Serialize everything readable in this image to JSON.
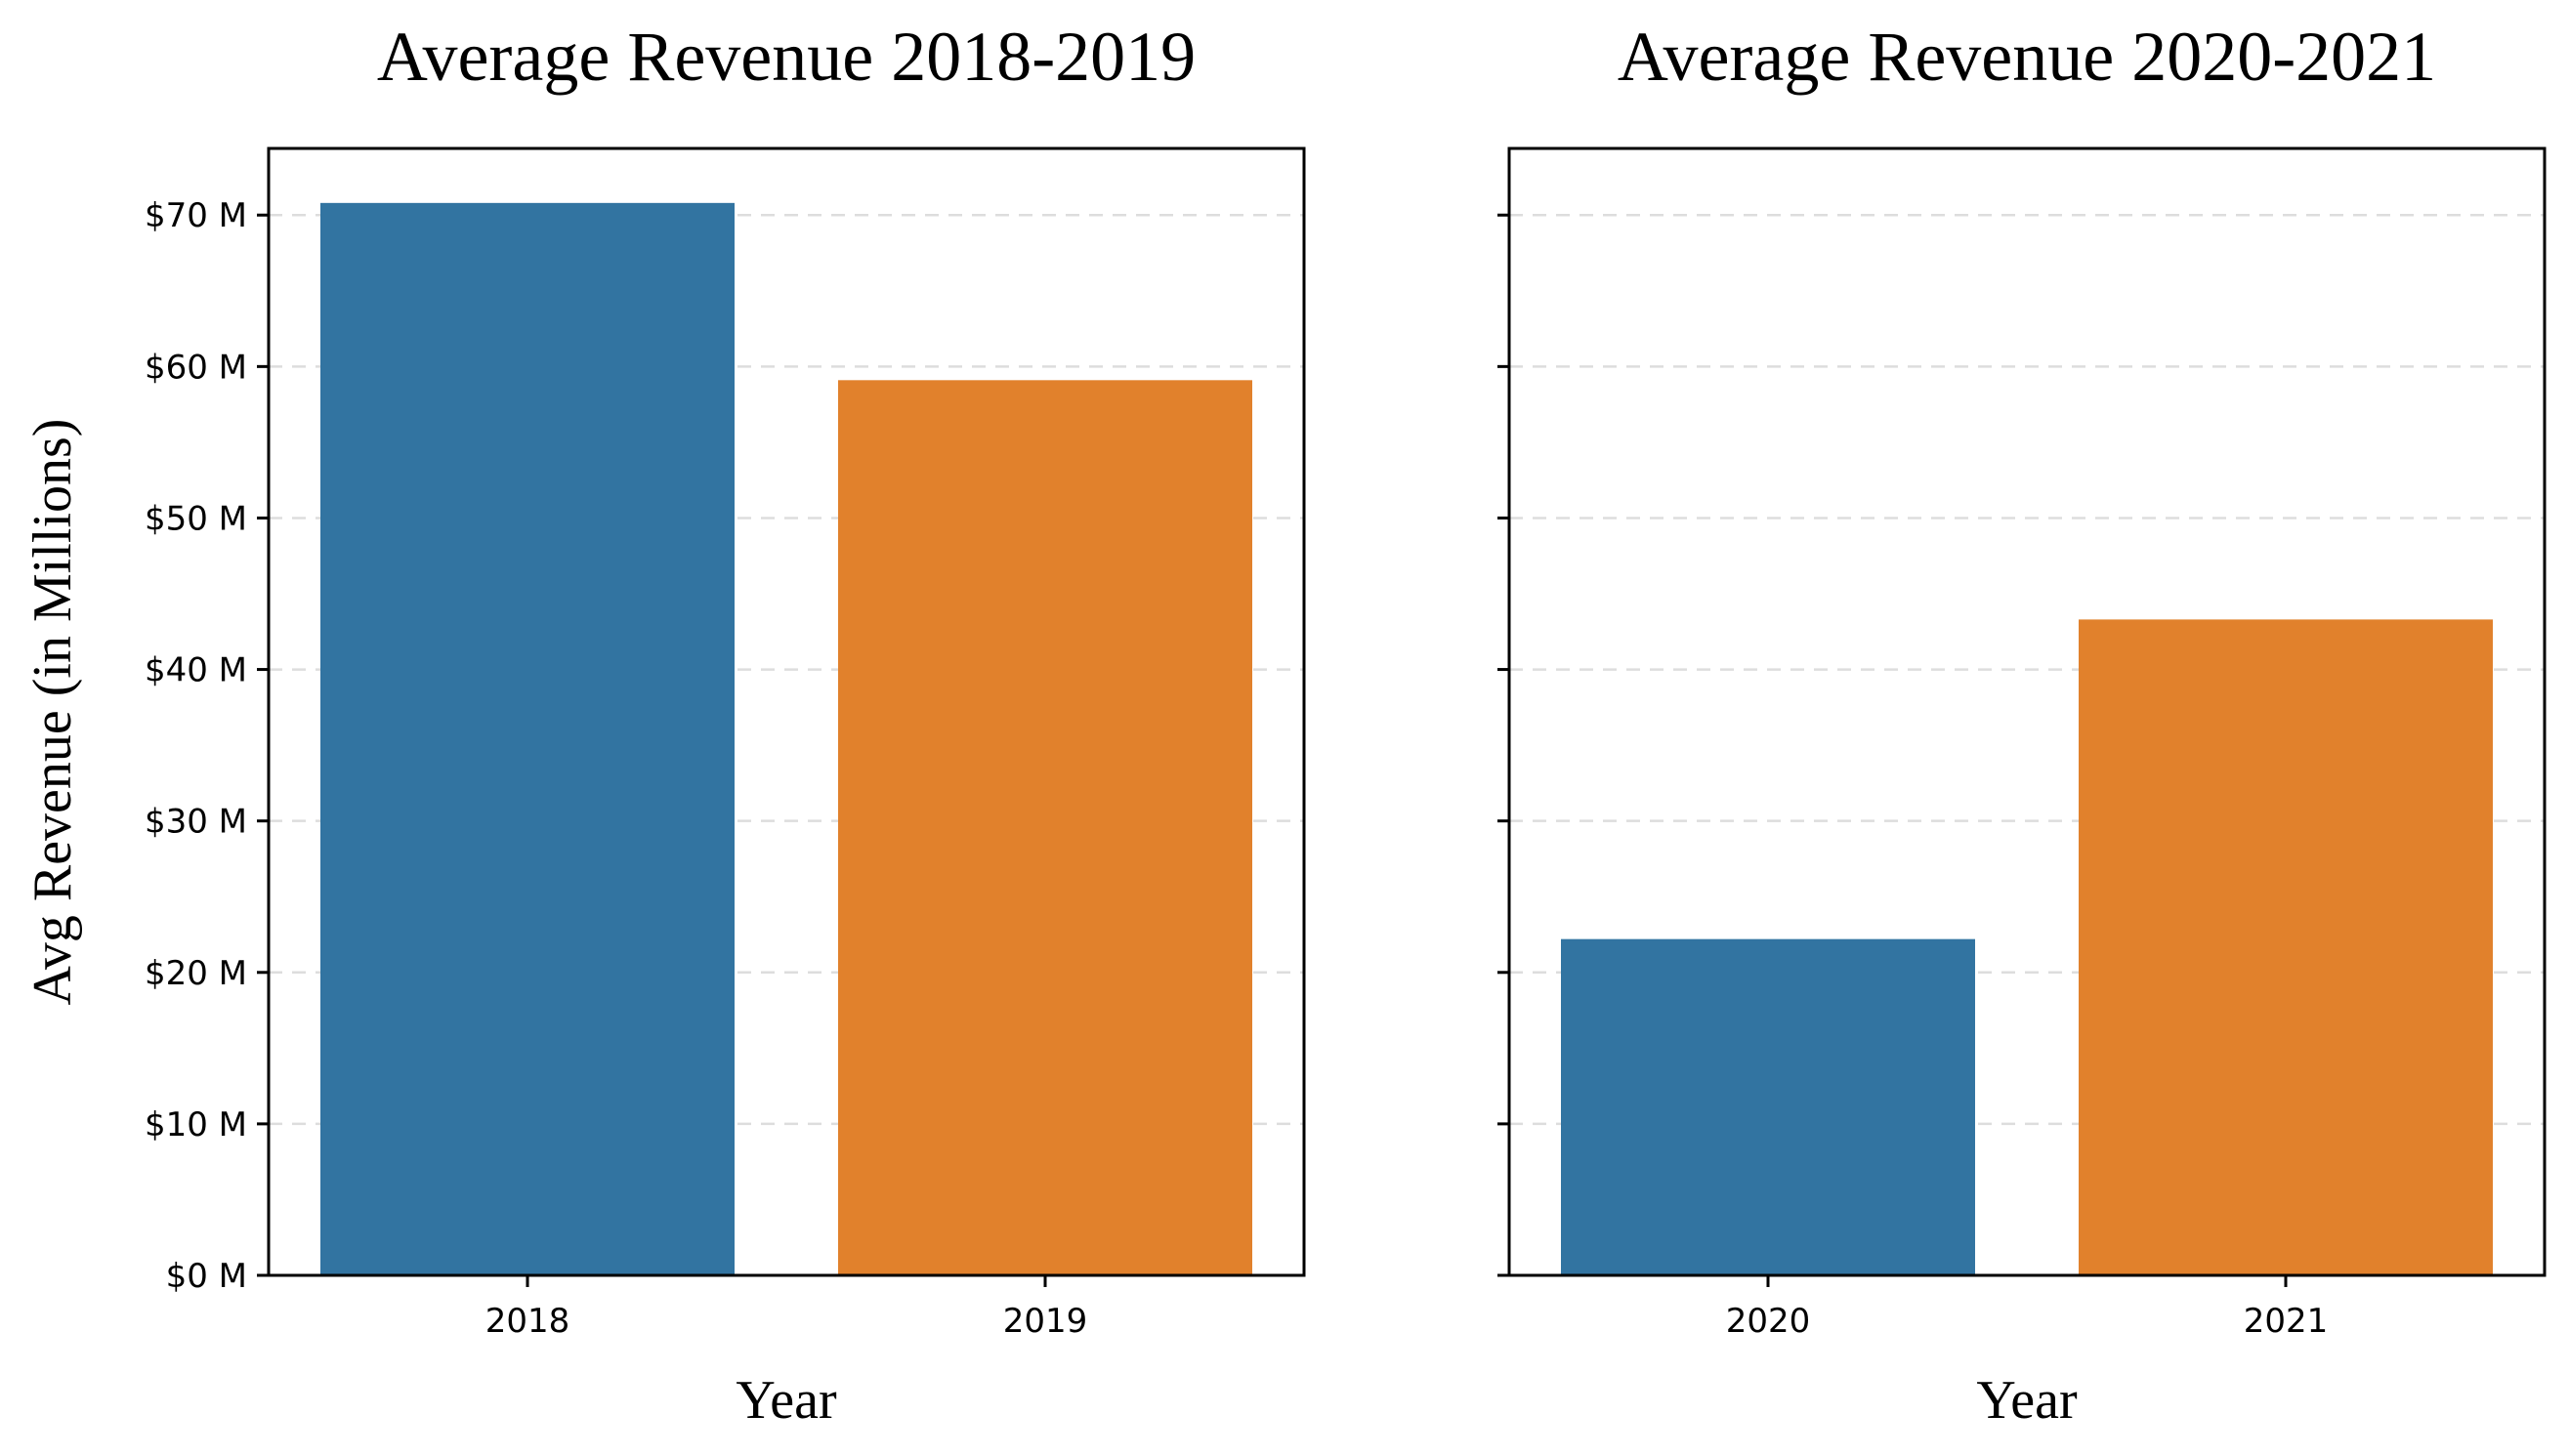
{
  "chart_data": [
    {
      "type": "bar",
      "title": "Average Revenue 2018-2019",
      "xlabel": "Year",
      "ylabel": "Avg Revenue (in Millions)",
      "categories": [
        "2018",
        "2019"
      ],
      "values": [
        70.8,
        59.1
      ],
      "colors": [
        "#3274a1",
        "#e1812c"
      ],
      "ylim": [
        0,
        74.4
      ],
      "yticks": [
        0,
        10,
        20,
        30,
        40,
        50,
        60,
        70
      ],
      "ytick_labels": [
        "$0 M",
        "$10 M",
        "$20 M",
        "$30 M",
        "$40 M",
        "$50 M",
        "$60 M",
        "$70 M"
      ],
      "show_ytick_labels": true,
      "grid": "y-dashed",
      "legend": "none"
    },
    {
      "type": "bar",
      "title": "Average Revenue 2020-2021",
      "xlabel": "Year",
      "ylabel": "",
      "categories": [
        "2020",
        "2021"
      ],
      "values": [
        22.2,
        43.3
      ],
      "colors": [
        "#3274a1",
        "#e1812c"
      ],
      "ylim": [
        0,
        74.4
      ],
      "yticks": [
        0,
        10,
        20,
        30,
        40,
        50,
        60,
        70
      ],
      "ytick_labels": [
        "$0 M",
        "$10 M",
        "$20 M",
        "$30 M",
        "$40 M",
        "$50 M",
        "$60 M",
        "$70 M"
      ],
      "show_ytick_labels": false,
      "grid": "y-dashed",
      "legend": "none"
    }
  ]
}
